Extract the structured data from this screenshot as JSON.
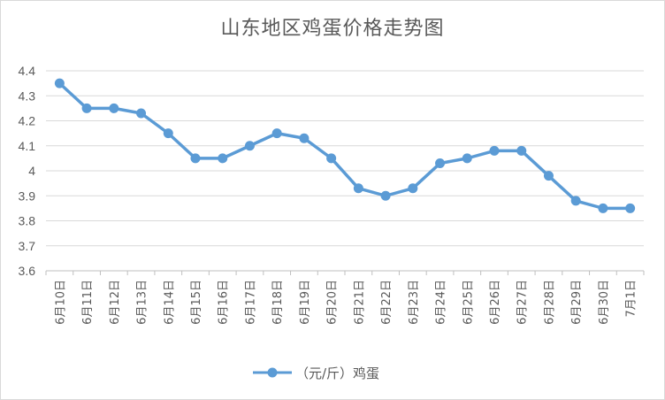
{
  "chart_data": {
    "type": "line",
    "title": "山东地区鸡蛋价格走势图",
    "categories": [
      "6月10日",
      "6月11日",
      "6月12日",
      "6月13日",
      "6月14日",
      "6月15日",
      "6月16日",
      "6月17日",
      "6月18日",
      "6月19日",
      "6月20日",
      "6月21日",
      "6月22日",
      "6月23日",
      "6月24日",
      "6月25日",
      "6月26日",
      "6月27日",
      "6月28日",
      "6月29日",
      "6月30日",
      "7月1日"
    ],
    "series": [
      {
        "name": "（元/斤）鸡蛋",
        "color": "#5B9BD5",
        "values": [
          4.35,
          4.25,
          4.25,
          4.23,
          4.15,
          4.05,
          4.05,
          4.1,
          4.15,
          4.13,
          4.05,
          3.93,
          3.9,
          3.93,
          4.03,
          4.05,
          4.08,
          4.08,
          3.98,
          3.88,
          3.85,
          3.85
        ]
      }
    ],
    "ylim": [
      3.6,
      4.4
    ],
    "yticks": [
      "3.6",
      "3.7",
      "3.8",
      "3.9",
      "4",
      "4.1",
      "4.2",
      "4.3",
      "4.4"
    ],
    "grid": true,
    "legend": "bottom"
  }
}
